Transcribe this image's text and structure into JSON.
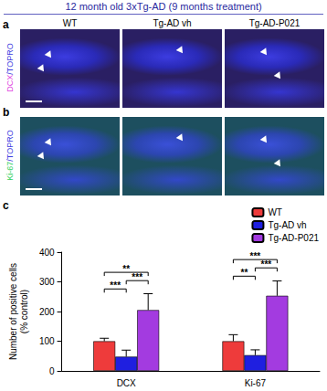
{
  "header": {
    "title": "12 month old 3xTg-AD (9 months treatment)"
  },
  "panels": [
    {
      "letter": "a",
      "label_parts": [
        "DCX",
        "/TOPRO"
      ],
      "columns": [
        "WT",
        "Tg-AD vh",
        "Tg-AD-P021"
      ]
    },
    {
      "letter": "b",
      "label_parts": [
        "Ki-67",
        "/TOPRO"
      ]
    },
    {
      "letter": "c"
    }
  ],
  "chart_data": {
    "type": "bar",
    "y_label": "Number of positive cells\n(% control)",
    "categories": [
      "DCX",
      "Ki-67"
    ],
    "series": [
      {
        "name": "WT",
        "color": "#ee3b3b",
        "values": [
          100,
          100
        ],
        "errors": [
          10,
          22
        ]
      },
      {
        "name": "Tg-AD vh",
        "color": "#1f1fe0",
        "values": [
          48,
          53
        ],
        "errors": [
          22,
          18
        ]
      },
      {
        "name": "Tg-AD-P021",
        "color": "#a33be0",
        "values": [
          205,
          253
        ],
        "errors": [
          55,
          50
        ]
      }
    ],
    "ylim": [
      0,
      400
    ],
    "yticks": [
      0,
      100,
      200,
      300,
      400
    ],
    "legend": "upper right",
    "significance": [
      {
        "category": "DCX",
        "pair": [
          "WT",
          "Tg-AD vh"
        ],
        "label": "***"
      },
      {
        "category": "DCX",
        "pair": [
          "Tg-AD vh",
          "Tg-AD-P021"
        ],
        "label": "***"
      },
      {
        "category": "DCX",
        "pair": [
          "WT",
          "Tg-AD-P021"
        ],
        "label": "**"
      },
      {
        "category": "Ki-67",
        "pair": [
          "WT",
          "Tg-AD vh"
        ],
        "label": "**"
      },
      {
        "category": "Ki-67",
        "pair": [
          "Tg-AD vh",
          "Tg-AD-P021"
        ],
        "label": "***"
      },
      {
        "category": "Ki-67",
        "pair": [
          "WT",
          "Tg-AD-P021"
        ],
        "label": "***"
      }
    ]
  }
}
